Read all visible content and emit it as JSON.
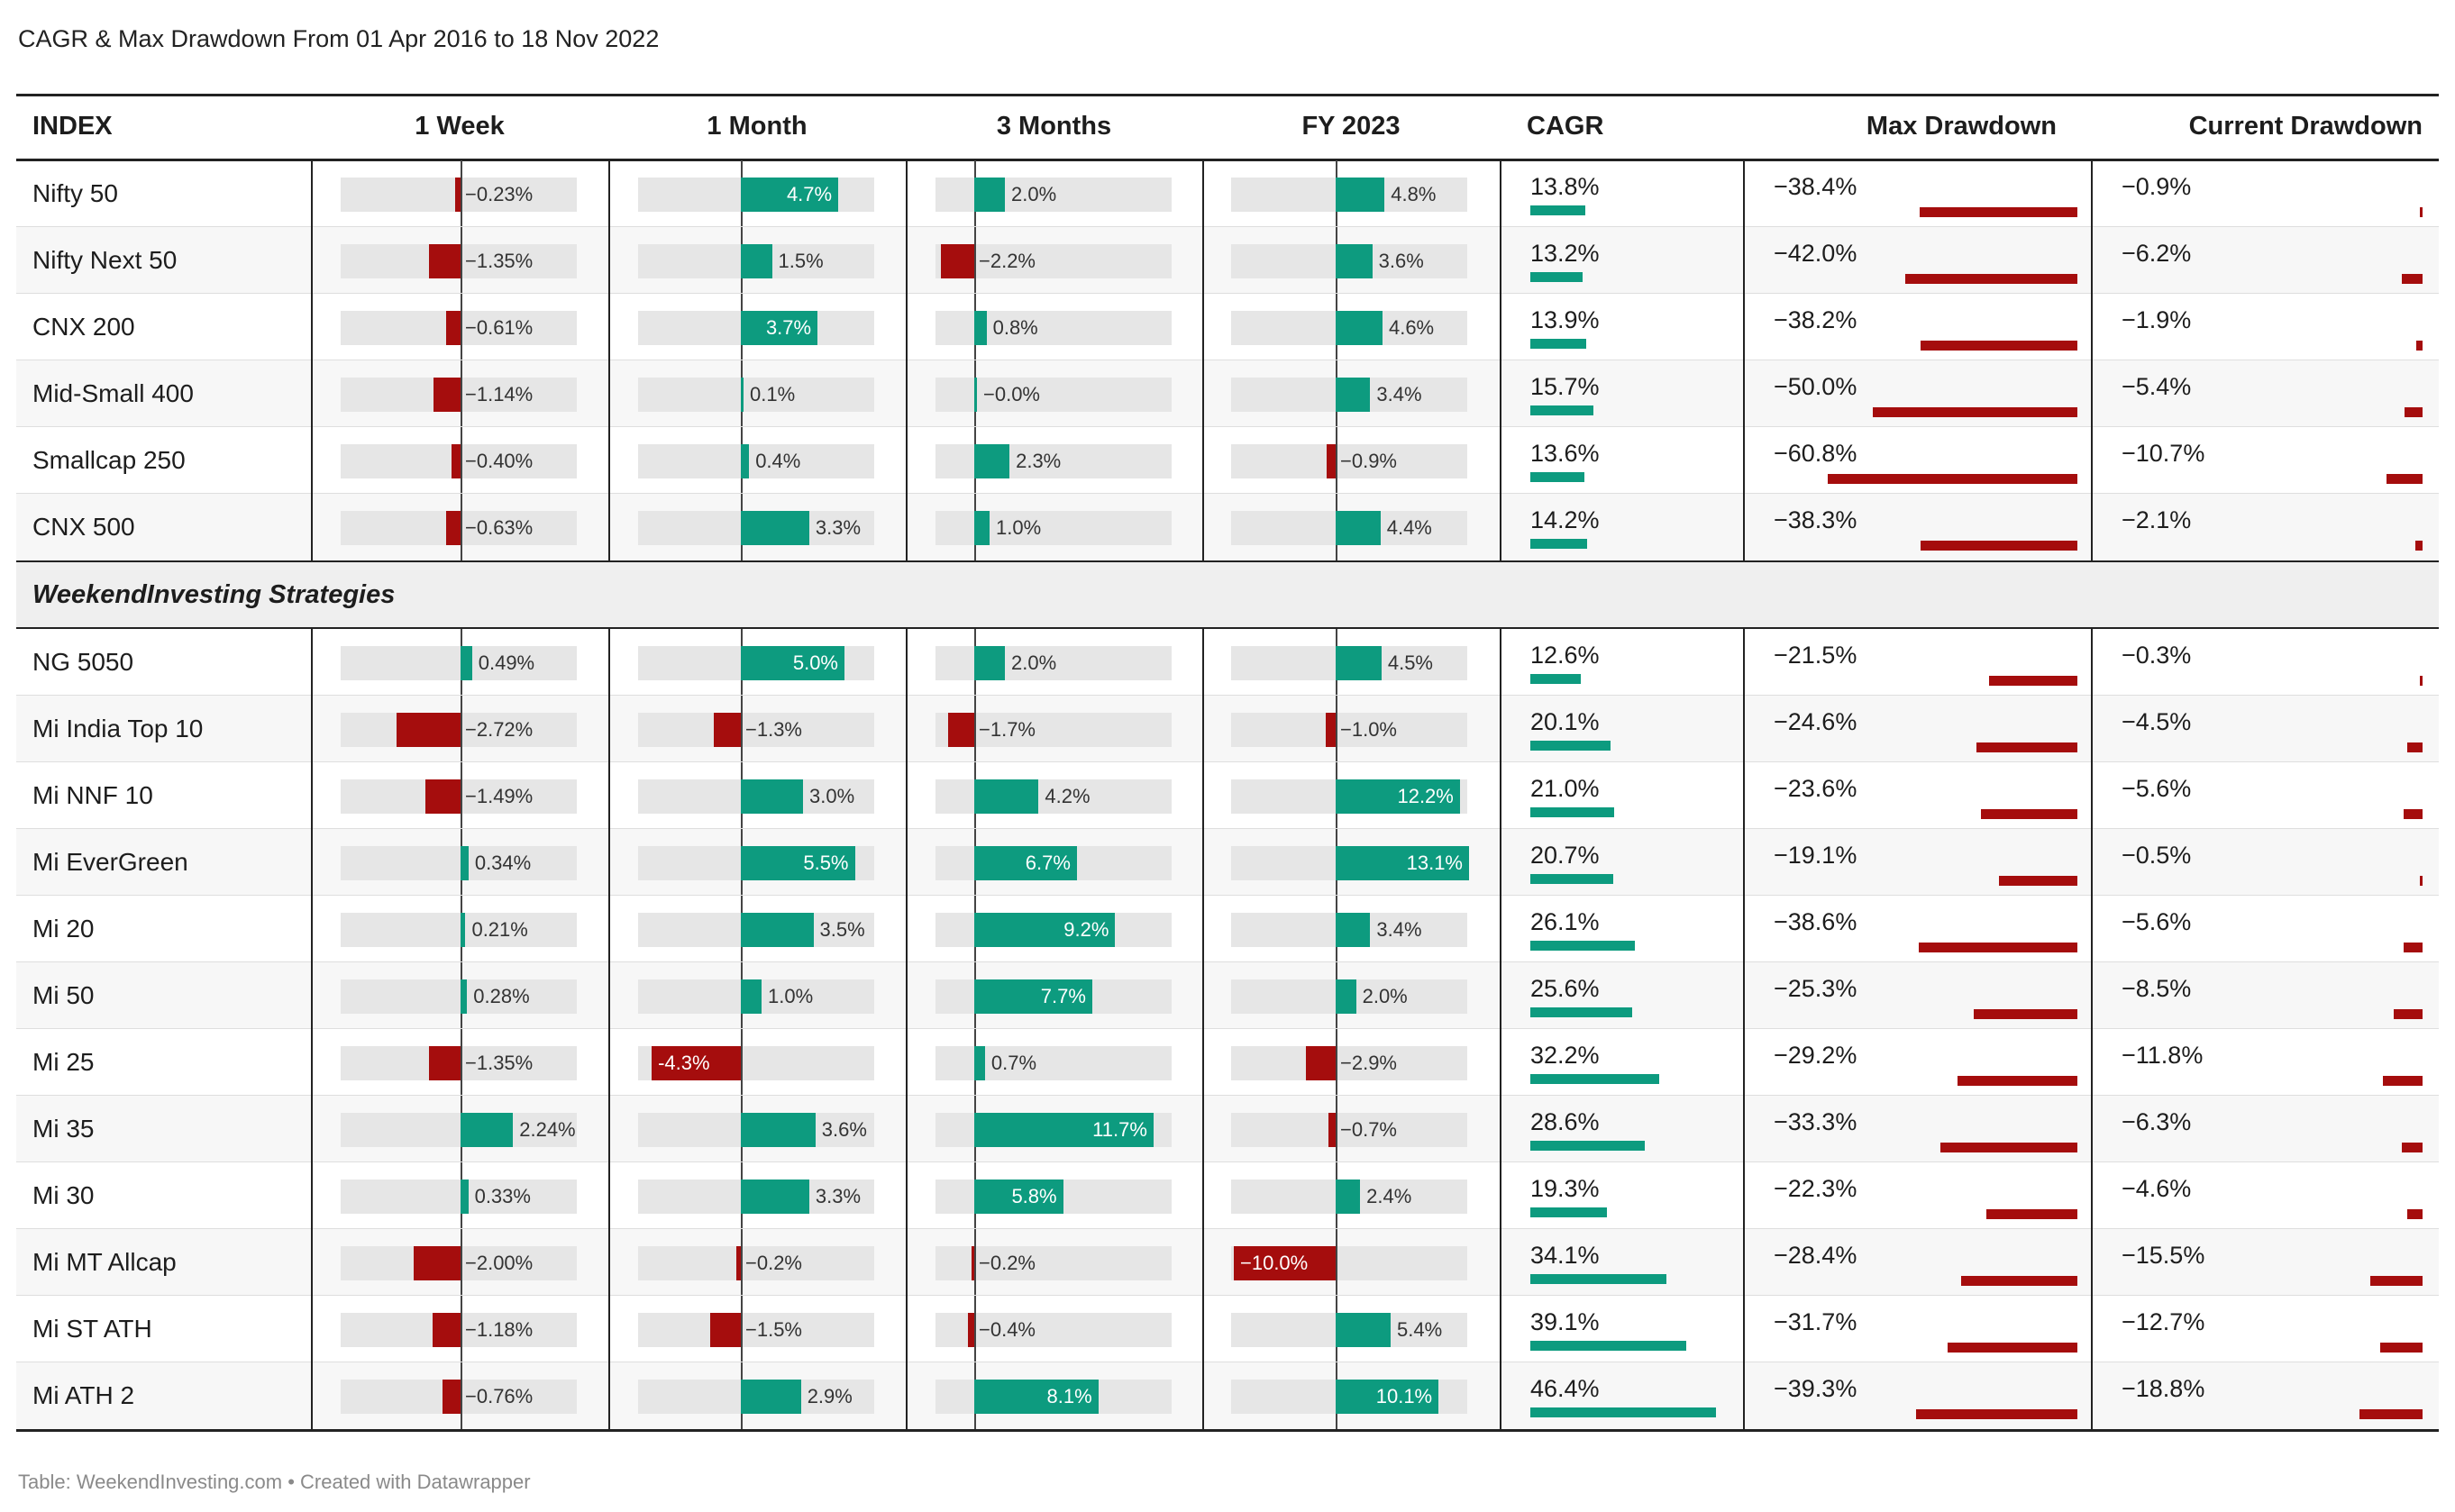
{
  "title": "CAGR & Max Drawdown From 01 Apr 2016 to 18 Nov 2022",
  "footer": "Table: WeekendInvesting.com • Created with Datawrapper",
  "colors": {
    "positive": "#0d9b7f",
    "negative": "#a50d0d",
    "track": "#e6e6e6"
  },
  "headers": {
    "index": "INDEX",
    "week": "1 Week",
    "month": "1 Month",
    "months3": "3 Months",
    "fy": "FY 2023",
    "cagr": "CAGR",
    "max_dd": "Max Drawdown",
    "cur_dd": "Current Drawdown"
  },
  "group_label": "WeekendInvesting Strategies",
  "chart_data": {
    "type": "table",
    "columns": [
      "INDEX",
      "1 Week",
      "1 Month",
      "3 Months",
      "FY 2023",
      "CAGR",
      "Max Drawdown",
      "Current Drawdown"
    ],
    "groups": [
      {
        "name": "",
        "rows": [
          {
            "name": "Nifty 50",
            "week": "−0.23%",
            "month": "4.7%",
            "m3": "2.0%",
            "fy": "4.8%",
            "cagr": "13.8%",
            "maxdd": "−38.4%",
            "curdd": "−0.9%"
          },
          {
            "name": "Nifty Next 50",
            "week": "−1.35%",
            "month": "1.5%",
            "m3": "−2.2%",
            "fy": "3.6%",
            "cagr": "13.2%",
            "maxdd": "−42.0%",
            "curdd": "−6.2%"
          },
          {
            "name": "CNX 200",
            "week": "−0.61%",
            "month": "3.7%",
            "m3": "0.8%",
            "fy": "4.6%",
            "cagr": "13.9%",
            "maxdd": "−38.2%",
            "curdd": "−1.9%"
          },
          {
            "name": "Mid-Small 400",
            "week": "−1.14%",
            "month": "0.1%",
            "m3": "−0.0%",
            "fy": "3.4%",
            "cagr": "15.7%",
            "maxdd": "−50.0%",
            "curdd": "−5.4%"
          },
          {
            "name": "Smallcap 250",
            "week": "−0.40%",
            "month": "0.4%",
            "m3": "2.3%",
            "fy": "−0.9%",
            "cagr": "13.6%",
            "maxdd": "−60.8%",
            "curdd": "−10.7%"
          },
          {
            "name": "CNX 500",
            "week": "−0.63%",
            "month": "3.3%",
            "m3": "1.0%",
            "fy": "4.4%",
            "cagr": "14.2%",
            "maxdd": "−38.3%",
            "curdd": "−2.1%"
          }
        ]
      },
      {
        "name": "WeekendInvesting Strategies",
        "rows": [
          {
            "name": "NG 5050",
            "week": "0.49%",
            "month": "5.0%",
            "m3": "2.0%",
            "fy": "4.5%",
            "cagr": "12.6%",
            "maxdd": "−21.5%",
            "curdd": "−0.3%"
          },
          {
            "name": "Mi India Top 10",
            "week": "−2.72%",
            "month": "−1.3%",
            "m3": "−1.7%",
            "fy": "−1.0%",
            "cagr": "20.1%",
            "maxdd": "−24.6%",
            "curdd": "−4.5%"
          },
          {
            "name": "Mi NNF 10",
            "week": "−1.49%",
            "month": "3.0%",
            "m3": "4.2%",
            "fy": "12.2%",
            "cagr": "21.0%",
            "maxdd": "−23.6%",
            "curdd": "−5.6%"
          },
          {
            "name": "Mi EverGreen",
            "week": "0.34%",
            "month": "5.5%",
            "m3": "6.7%",
            "fy": "13.1%",
            "cagr": "20.7%",
            "maxdd": "−19.1%",
            "curdd": "−0.5%"
          },
          {
            "name": "Mi 20",
            "week": "0.21%",
            "month": "3.5%",
            "m3": "9.2%",
            "fy": "3.4%",
            "cagr": "26.1%",
            "maxdd": "−38.6%",
            "curdd": "−5.6%"
          },
          {
            "name": "Mi 50",
            "week": "0.28%",
            "month": "1.0%",
            "m3": "7.7%",
            "fy": "2.0%",
            "cagr": "25.6%",
            "maxdd": "−25.3%",
            "curdd": "−8.5%"
          },
          {
            "name": "Mi 25",
            "week": "−1.35%",
            "month": "-4.3%",
            "m3": "0.7%",
            "fy": "−2.9%",
            "cagr": "32.2%",
            "maxdd": "−29.2%",
            "curdd": "−11.8%"
          },
          {
            "name": "Mi 35",
            "week": "2.24%",
            "month": "3.6%",
            "m3": "11.7%",
            "fy": "−0.7%",
            "cagr": "28.6%",
            "maxdd": "−33.3%",
            "curdd": "−6.3%"
          },
          {
            "name": "Mi 30",
            "week": "0.33%",
            "month": "3.3%",
            "m3": "5.8%",
            "fy": "2.4%",
            "cagr": "19.3%",
            "maxdd": "−22.3%",
            "curdd": "−4.6%"
          },
          {
            "name": "Mi MT Allcap",
            "week": "−2.00%",
            "month": "−0.2%",
            "m3": "−0.2%",
            "fy": "−10.0%",
            "cagr": "34.1%",
            "maxdd": "−28.4%",
            "curdd": "−15.5%"
          },
          {
            "name": "Mi ST ATH",
            "week": "−1.18%",
            "month": "−1.5%",
            "m3": "−0.4%",
            "fy": "5.4%",
            "cagr": "39.1%",
            "maxdd": "−31.7%",
            "curdd": "−12.7%"
          },
          {
            "name": "Mi ATH 2",
            "week": "−0.76%",
            "month": "2.9%",
            "m3": "8.1%",
            "fy": "10.1%",
            "cagr": "46.4%",
            "maxdd": "−39.3%",
            "curdd": "−18.8%"
          }
        ]
      }
    ]
  }
}
